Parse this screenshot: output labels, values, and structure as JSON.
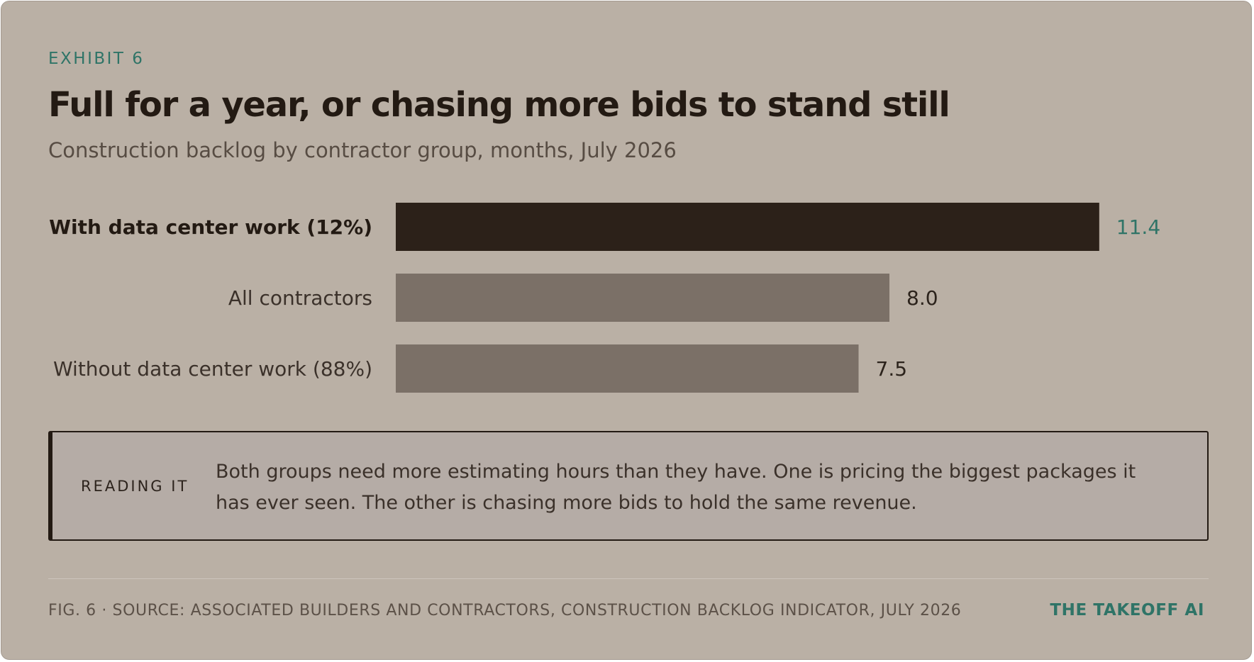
{
  "eyebrow": "EXHIBIT 6",
  "title": "Full for a year, or chasing more bids to stand still",
  "subtitle": "Construction backlog by contractor group, months, July 2026",
  "chart_data": {
    "type": "bar",
    "orientation": "horizontal",
    "categories": [
      "With data center work (12%)",
      "All contractors",
      "Without data center work (88%)"
    ],
    "values": [
      11.4,
      8.0,
      7.5
    ],
    "value_labels": [
      "11.4",
      "8.0",
      "7.5"
    ],
    "highlight_index": 0,
    "xlim": [
      0,
      15
    ],
    "grid": false,
    "colors": {
      "highlight_bar": "#2c2119",
      "bar": "#7b7067",
      "highlight_value": "#2f7467",
      "value": "#2c231c"
    }
  },
  "callout": {
    "label": "READING IT",
    "text": "Both groups need more estimating hours than they have. One is pricing the biggest packages it has ever seen. The other is chasing more bids to hold the same revenue."
  },
  "footer": {
    "source": "FIG. 6 · SOURCE: ASSOCIATED BUILDERS AND CONTRACTORS, CONSTRUCTION BACKLOG INDICATOR, JULY 2026",
    "brand": "THE TAKEOFF AI"
  },
  "colors": {
    "background": "#bab0a5",
    "accent": "#2f7467",
    "ink": "#231a13"
  }
}
